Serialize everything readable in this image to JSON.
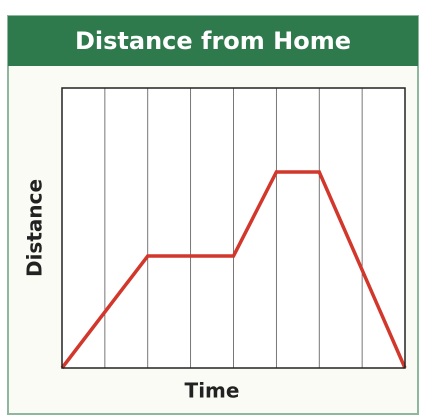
{
  "chart_data": {
    "type": "line",
    "title": "Distance from Home",
    "xlabel": "Time",
    "ylabel": "Distance",
    "x": [
      0,
      2,
      4,
      5,
      6,
      8
    ],
    "series": [
      {
        "name": "Distance",
        "color": "#d2372c",
        "values": [
          0,
          4,
          4,
          7,
          7,
          0
        ]
      }
    ],
    "xlim": [
      0,
      8
    ],
    "ylim": [
      0,
      10
    ],
    "xticks": [
      0,
      1,
      2,
      3,
      4,
      5,
      6,
      7,
      8
    ],
    "grid": true
  }
}
